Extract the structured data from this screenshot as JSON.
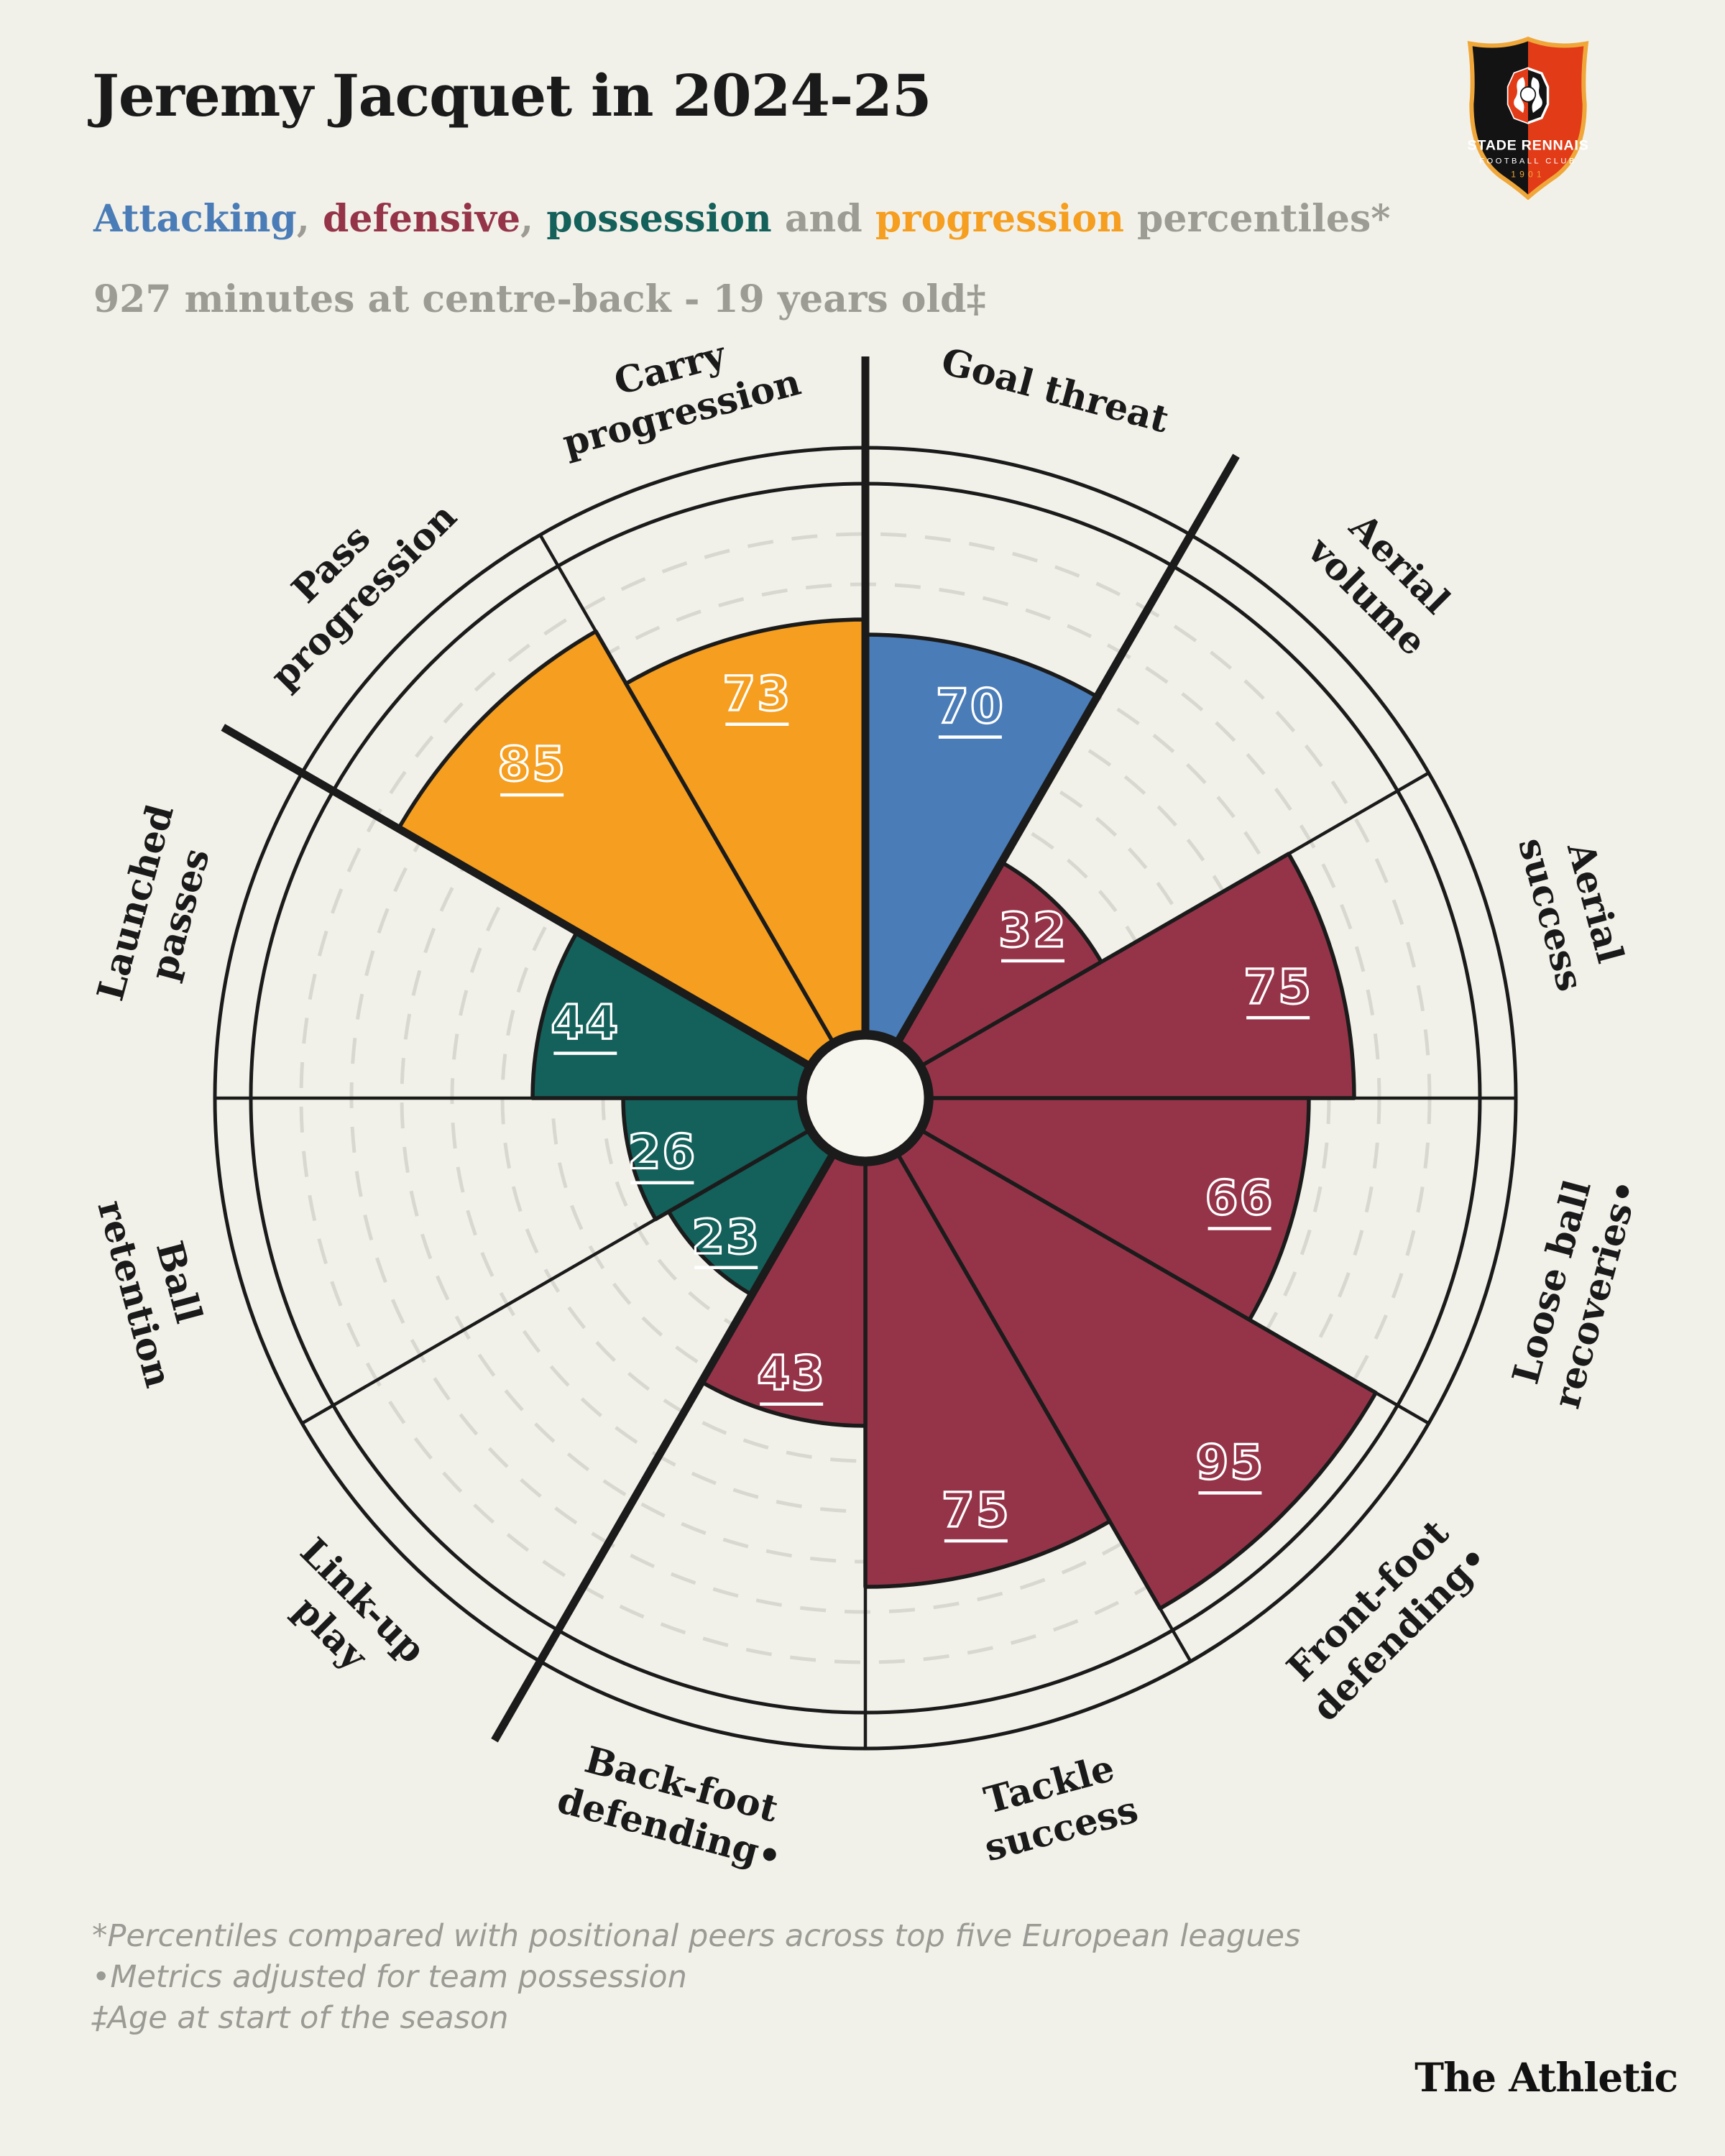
{
  "page": {
    "background": "#f2f1e9"
  },
  "header": {
    "title": "Jeremy Jacquet in 2024-25",
    "subtitle_parts": [
      {
        "text": "Attacking",
        "role": "attacking"
      },
      {
        "text": ", ",
        "role": "plain"
      },
      {
        "text": "defensive",
        "role": "defensive"
      },
      {
        "text": ", ",
        "role": "plain"
      },
      {
        "text": "possession",
        "role": "possession"
      },
      {
        "text": " and ",
        "role": "plain"
      },
      {
        "text": "progression",
        "role": "progression"
      },
      {
        "text": " percentiles*",
        "role": "plain"
      }
    ],
    "info_line": "927 minutes at centre-back - 19 years old‡"
  },
  "crest": {
    "club_line1": "STADE RENNAIS",
    "club_line2": "FOOTBALL CLUB",
    "founded": "1901",
    "colors": {
      "red": "#e23b17",
      "black": "#131313",
      "gold": "#f0a73a",
      "white": "#ffffff"
    }
  },
  "chart_data": {
    "type": "polar_bar_pizza",
    "scale_min": 0,
    "scale_max": 100,
    "gridline_interval": 10,
    "slice_angle_deg": 30,
    "start_angle_deg": 0,
    "legend_position": "subtitle-inline",
    "grid": "dashed-circles",
    "groups": [
      {
        "name": "Attacking",
        "color": "#4a7cb7",
        "metrics": [
          {
            "label": "Goal threat",
            "label_lines": [
              "Goal threat"
            ],
            "value": 70
          }
        ]
      },
      {
        "name": "Defensive",
        "color": "#953449",
        "metrics": [
          {
            "label": "Aerial volume",
            "label_lines": [
              "Aerial",
              "volume"
            ],
            "value": 32
          },
          {
            "label": "Aerial success",
            "label_lines": [
              "Aerial",
              "success"
            ],
            "value": 75
          },
          {
            "label": "Loose ball recoveries•",
            "label_lines": [
              "Loose ball",
              "recoveries•"
            ],
            "value": 66
          },
          {
            "label": "Front-foot defending•",
            "label_lines": [
              "Front-foot",
              "defending•"
            ],
            "value": 95
          },
          {
            "label": "Tackle success",
            "label_lines": [
              "Tackle",
              "success"
            ],
            "value": 75
          },
          {
            "label": "Back-foot defending•",
            "label_lines": [
              "Back-foot",
              "defending•"
            ],
            "value": 43
          }
        ]
      },
      {
        "name": "Possession",
        "color": "#14605a",
        "metrics": [
          {
            "label": "Link-up play",
            "label_lines": [
              "Link-up",
              "play"
            ],
            "value": 23
          },
          {
            "label": "Ball retention",
            "label_lines": [
              "Ball",
              "retention"
            ],
            "value": 26
          },
          {
            "label": "Launched passes",
            "label_lines": [
              "Launched",
              "passes"
            ],
            "value": 44
          }
        ]
      },
      {
        "name": "Progression",
        "color": "#f59e1f",
        "metrics": [
          {
            "label": "Pass progression",
            "label_lines": [
              "Pass",
              "progression"
            ],
            "value": 85
          },
          {
            "label": "Carry progression",
            "label_lines": [
              "Carry",
              "progression"
            ],
            "value": 73
          }
        ]
      }
    ],
    "styling": {
      "value_text_color": "#ffffff",
      "line_color": "#1b1b1b",
      "gridline_color": "#d9d8d0",
      "hole_fill": "#f7f6ee",
      "background": "#f2f1e9"
    }
  },
  "footnotes": [
    "*Percentiles compared with positional peers across top five European leagues",
    "•Metrics adjusted for team possession",
    "‡Age at start of the season"
  ],
  "brand": "The Athletic"
}
